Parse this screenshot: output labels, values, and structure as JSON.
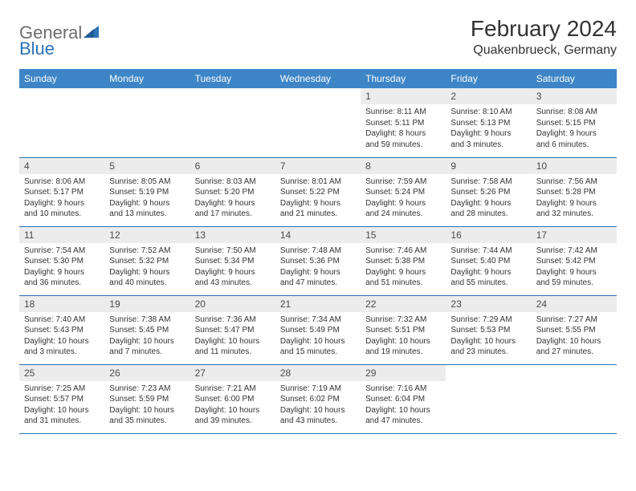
{
  "brand": {
    "name_part1": "General",
    "name_part2": "Blue",
    "icon_color": "#2c72b6",
    "text_color_grey": "#6d6d6d"
  },
  "header": {
    "month_title": "February 2024",
    "location": "Quakenbrueck, Germany"
  },
  "styling": {
    "header_bg": "#3d85c6",
    "header_text": "#ffffff",
    "daynum_bg": "#ececec",
    "daynum_text": "#4a4a4a",
    "body_text": "#333333",
    "rule_color": "#2c72b6",
    "page_bg": "#ffffff",
    "th_fontsize": 12,
    "daynum_fontsize": 12,
    "body_fontsize": 10,
    "title_fontsize": 28,
    "location_fontsize": 16
  },
  "weekdays": [
    "Sunday",
    "Monday",
    "Tuesday",
    "Wednesday",
    "Thursday",
    "Friday",
    "Saturday"
  ],
  "weeks": [
    [
      null,
      null,
      null,
      null,
      {
        "num": "1",
        "sunrise": "Sunrise: 8:11 AM",
        "sunset": "Sunset: 5:11 PM",
        "daylight": "Daylight: 8 hours and 59 minutes."
      },
      {
        "num": "2",
        "sunrise": "Sunrise: 8:10 AM",
        "sunset": "Sunset: 5:13 PM",
        "daylight": "Daylight: 9 hours and 3 minutes."
      },
      {
        "num": "3",
        "sunrise": "Sunrise: 8:08 AM",
        "sunset": "Sunset: 5:15 PM",
        "daylight": "Daylight: 9 hours and 6 minutes."
      }
    ],
    [
      {
        "num": "4",
        "sunrise": "Sunrise: 8:06 AM",
        "sunset": "Sunset: 5:17 PM",
        "daylight": "Daylight: 9 hours and 10 minutes."
      },
      {
        "num": "5",
        "sunrise": "Sunrise: 8:05 AM",
        "sunset": "Sunset: 5:19 PM",
        "daylight": "Daylight: 9 hours and 13 minutes."
      },
      {
        "num": "6",
        "sunrise": "Sunrise: 8:03 AM",
        "sunset": "Sunset: 5:20 PM",
        "daylight": "Daylight: 9 hours and 17 minutes."
      },
      {
        "num": "7",
        "sunrise": "Sunrise: 8:01 AM",
        "sunset": "Sunset: 5:22 PM",
        "daylight": "Daylight: 9 hours and 21 minutes."
      },
      {
        "num": "8",
        "sunrise": "Sunrise: 7:59 AM",
        "sunset": "Sunset: 5:24 PM",
        "daylight": "Daylight: 9 hours and 24 minutes."
      },
      {
        "num": "9",
        "sunrise": "Sunrise: 7:58 AM",
        "sunset": "Sunset: 5:26 PM",
        "daylight": "Daylight: 9 hours and 28 minutes."
      },
      {
        "num": "10",
        "sunrise": "Sunrise: 7:56 AM",
        "sunset": "Sunset: 5:28 PM",
        "daylight": "Daylight: 9 hours and 32 minutes."
      }
    ],
    [
      {
        "num": "11",
        "sunrise": "Sunrise: 7:54 AM",
        "sunset": "Sunset: 5:30 PM",
        "daylight": "Daylight: 9 hours and 36 minutes."
      },
      {
        "num": "12",
        "sunrise": "Sunrise: 7:52 AM",
        "sunset": "Sunset: 5:32 PM",
        "daylight": "Daylight: 9 hours and 40 minutes."
      },
      {
        "num": "13",
        "sunrise": "Sunrise: 7:50 AM",
        "sunset": "Sunset: 5:34 PM",
        "daylight": "Daylight: 9 hours and 43 minutes."
      },
      {
        "num": "14",
        "sunrise": "Sunrise: 7:48 AM",
        "sunset": "Sunset: 5:36 PM",
        "daylight": "Daylight: 9 hours and 47 minutes."
      },
      {
        "num": "15",
        "sunrise": "Sunrise: 7:46 AM",
        "sunset": "Sunset: 5:38 PM",
        "daylight": "Daylight: 9 hours and 51 minutes."
      },
      {
        "num": "16",
        "sunrise": "Sunrise: 7:44 AM",
        "sunset": "Sunset: 5:40 PM",
        "daylight": "Daylight: 9 hours and 55 minutes."
      },
      {
        "num": "17",
        "sunrise": "Sunrise: 7:42 AM",
        "sunset": "Sunset: 5:42 PM",
        "daylight": "Daylight: 9 hours and 59 minutes."
      }
    ],
    [
      {
        "num": "18",
        "sunrise": "Sunrise: 7:40 AM",
        "sunset": "Sunset: 5:43 PM",
        "daylight": "Daylight: 10 hours and 3 minutes."
      },
      {
        "num": "19",
        "sunrise": "Sunrise: 7:38 AM",
        "sunset": "Sunset: 5:45 PM",
        "daylight": "Daylight: 10 hours and 7 minutes."
      },
      {
        "num": "20",
        "sunrise": "Sunrise: 7:36 AM",
        "sunset": "Sunset: 5:47 PM",
        "daylight": "Daylight: 10 hours and 11 minutes."
      },
      {
        "num": "21",
        "sunrise": "Sunrise: 7:34 AM",
        "sunset": "Sunset: 5:49 PM",
        "daylight": "Daylight: 10 hours and 15 minutes."
      },
      {
        "num": "22",
        "sunrise": "Sunrise: 7:32 AM",
        "sunset": "Sunset: 5:51 PM",
        "daylight": "Daylight: 10 hours and 19 minutes."
      },
      {
        "num": "23",
        "sunrise": "Sunrise: 7:29 AM",
        "sunset": "Sunset: 5:53 PM",
        "daylight": "Daylight: 10 hours and 23 minutes."
      },
      {
        "num": "24",
        "sunrise": "Sunrise: 7:27 AM",
        "sunset": "Sunset: 5:55 PM",
        "daylight": "Daylight: 10 hours and 27 minutes."
      }
    ],
    [
      {
        "num": "25",
        "sunrise": "Sunrise: 7:25 AM",
        "sunset": "Sunset: 5:57 PM",
        "daylight": "Daylight: 10 hours and 31 minutes."
      },
      {
        "num": "26",
        "sunrise": "Sunrise: 7:23 AM",
        "sunset": "Sunset: 5:59 PM",
        "daylight": "Daylight: 10 hours and 35 minutes."
      },
      {
        "num": "27",
        "sunrise": "Sunrise: 7:21 AM",
        "sunset": "Sunset: 6:00 PM",
        "daylight": "Daylight: 10 hours and 39 minutes."
      },
      {
        "num": "28",
        "sunrise": "Sunrise: 7:19 AM",
        "sunset": "Sunset: 6:02 PM",
        "daylight": "Daylight: 10 hours and 43 minutes."
      },
      {
        "num": "29",
        "sunrise": "Sunrise: 7:16 AM",
        "sunset": "Sunset: 6:04 PM",
        "daylight": "Daylight: 10 hours and 47 minutes."
      },
      null,
      null
    ]
  ]
}
